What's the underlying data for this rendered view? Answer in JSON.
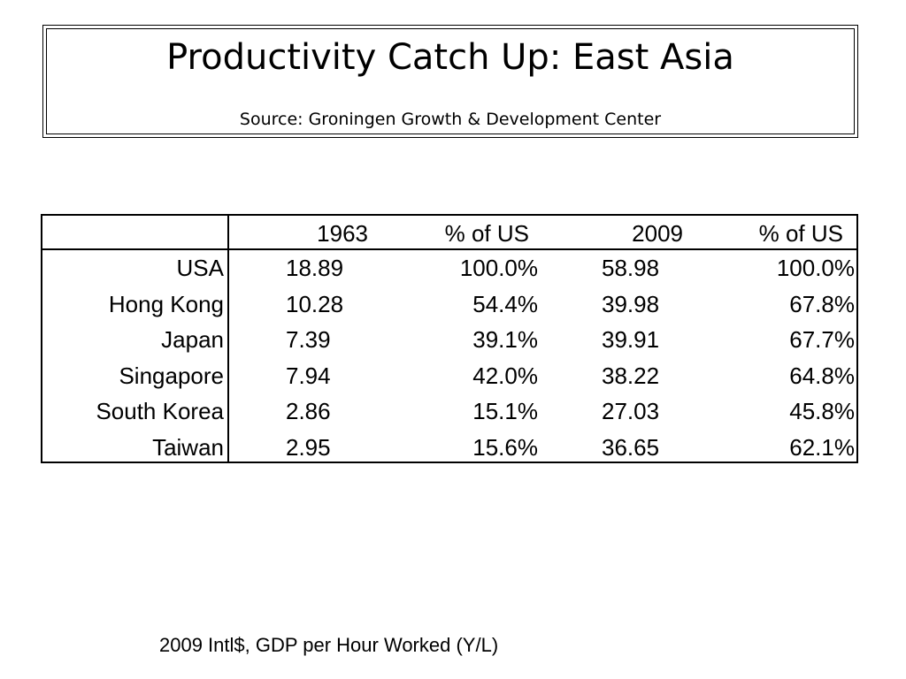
{
  "title": "Productivity Catch Up: East Asia",
  "source": "Source: Groningen Growth & Development Center",
  "table": {
    "headers": [
      "1963",
      "% of US",
      "2009",
      "% of US"
    ],
    "rows": [
      {
        "country": "USA",
        "v1963": "18.89",
        "p1963": "100.0%",
        "v2009": "58.98",
        "p2009": "100.0%"
      },
      {
        "country": "Hong Kong",
        "v1963": "10.28",
        "p1963": "54.4%",
        "v2009": "39.98",
        "p2009": "67.8%"
      },
      {
        "country": "Japan",
        "v1963": "7.39",
        "p1963": "39.1%",
        "v2009": "39.91",
        "p2009": "67.7%"
      },
      {
        "country": "Singapore",
        "v1963": "7.94",
        "p1963": "42.0%",
        "v2009": "38.22",
        "p2009": "64.8%"
      },
      {
        "country": "South Korea",
        "v1963": "2.86",
        "p1963": "15.1%",
        "v2009": "27.03",
        "p2009": "45.8%"
      },
      {
        "country": "Taiwan",
        "v1963": "2.95",
        "p1963": "15.6%",
        "v2009": "36.65",
        "p2009": "62.1%"
      }
    ]
  },
  "footer": "2009 Intl$, GDP per Hour Worked (Y/L)"
}
